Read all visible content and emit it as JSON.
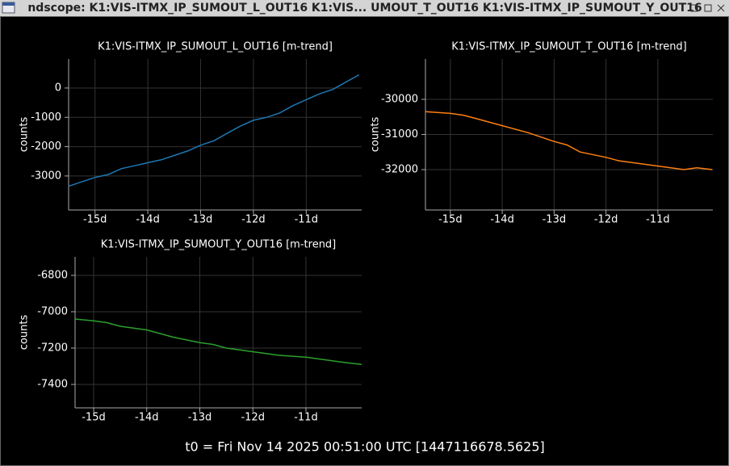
{
  "window": {
    "title": "ndscope: K1:VIS-ITMX_IP_SUMOUT_L_OUT16 K1:VIS... UMOUT_T_OUT16 K1:VIS-ITMX_IP_SUMOUT_Y_OUT16"
  },
  "chart_data": [
    {
      "type": "line",
      "title": "K1:VIS-ITMX_IP_SUMOUT_L_OUT16 [m-trend]",
      "y_label": "counts",
      "color": "#1f77b4",
      "grid": true,
      "x": [
        -15.5,
        -15.25,
        -15.0,
        -14.75,
        -14.5,
        -14.25,
        -14.0,
        -13.75,
        -13.5,
        -13.25,
        -13.0,
        -12.75,
        -12.5,
        -12.25,
        -12.0,
        -11.75,
        -11.5,
        -11.25,
        -11.0,
        -10.75,
        -10.5,
        -10.25,
        -10.0
      ],
      "values": [
        -3350,
        -3200,
        -3050,
        -2950,
        -2750,
        -2650,
        -2550,
        -2450,
        -2300,
        -2150,
        -1950,
        -1800,
        -1550,
        -1300,
        -1100,
        -1000,
        -850,
        -600,
        -400,
        -200,
        -50,
        200,
        450
      ],
      "xlim": [
        -15.5,
        -9.95
      ],
      "ylim": [
        -4160,
        990
      ],
      "xticks": [
        {
          "value": -15,
          "label": "-15d"
        },
        {
          "value": -14,
          "label": "-14d"
        },
        {
          "value": -13,
          "label": "-13d"
        },
        {
          "value": -12,
          "label": "-12d"
        },
        {
          "value": -11,
          "label": "-11d"
        }
      ],
      "yticks": [
        0,
        -1000,
        -2000,
        -3000
      ]
    },
    {
      "type": "line",
      "title": "K1:VIS-ITMX_IP_SUMOUT_T_OUT16 [m-trend]",
      "y_label": "counts",
      "color": "#ff7f0e",
      "grid": true,
      "x": [
        -15.48,
        -15.0,
        -14.75,
        -14.5,
        -14.0,
        -13.75,
        -13.5,
        -13.0,
        -12.75,
        -12.5,
        -12.0,
        -11.75,
        -11.5,
        -11.0,
        -10.75,
        -10.5,
        -10.25,
        -9.95
      ],
      "values": [
        -30350,
        -30400,
        -30450,
        -30550,
        -30750,
        -30850,
        -30950,
        -31200,
        -31300,
        -31500,
        -31650,
        -31750,
        -31800,
        -31900,
        -31950,
        -32000,
        -31950,
        -32000
      ],
      "xlim": [
        -15.48,
        -9.94
      ],
      "ylim": [
        -33150,
        -28850
      ],
      "xticks": [
        {
          "value": -15,
          "label": "-15d"
        },
        {
          "value": -14,
          "label": "-14d"
        },
        {
          "value": -13,
          "label": "-13d"
        },
        {
          "value": -12,
          "label": "-12d"
        },
        {
          "value": -11,
          "label": "-11d"
        }
      ],
      "yticks": [
        -30000,
        -31000,
        -32000
      ]
    },
    {
      "type": "line",
      "title": "K1:VIS-ITMX_IP_SUMOUT_Y_OUT16 [m-trend]",
      "y_label": "counts",
      "color": "#2ca02c",
      "grid": true,
      "x": [
        -15.35,
        -15.0,
        -14.75,
        -14.5,
        -14.0,
        -13.75,
        -13.5,
        -13.0,
        -12.75,
        -12.5,
        -12.0,
        -11.75,
        -11.5,
        -11.0,
        -10.75,
        -10.5,
        -10.25,
        -9.95
      ],
      "values": [
        -7040,
        -7050,
        -7060,
        -7080,
        -7100,
        -7120,
        -7140,
        -7170,
        -7180,
        -7200,
        -7220,
        -7230,
        -7240,
        -7250,
        -7260,
        -7270,
        -7280,
        -7290
      ],
      "xlim": [
        -15.35,
        -9.95
      ],
      "ylim": [
        -7529,
        -6698
      ],
      "xticks": [
        {
          "value": -15,
          "label": "-15d"
        },
        {
          "value": -14,
          "label": "-14d"
        },
        {
          "value": -13,
          "label": "-13d"
        },
        {
          "value": -12,
          "label": "-12d"
        },
        {
          "value": -11,
          "label": "-11d"
        }
      ],
      "yticks": [
        -6800,
        -7000,
        -7200,
        -7400
      ]
    }
  ],
  "footer": {
    "t0": "t0 = Fri Nov 14 2025 00:51:00 UTC [1447116678.5625]"
  }
}
